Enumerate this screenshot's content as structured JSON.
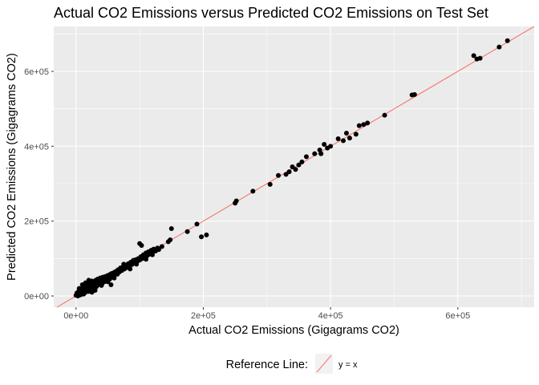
{
  "chart_data": {
    "type": "scatter",
    "title": "Actual CO2 Emissions versus Predicted CO2 Emissions on Test Set",
    "xlabel": "Actual CO2 Emissions (Gigagrams CO2)",
    "ylabel": "Predicted CO2 Emissions (Gigagrams CO2)",
    "xlim": [
      -35000,
      720000
    ],
    "ylim": [
      -30000,
      720000
    ],
    "x_ticks": [
      {
        "value": 0,
        "label": "0e+00"
      },
      {
        "value": 200000,
        "label": "2e+05"
      },
      {
        "value": 400000,
        "label": "4e+05"
      },
      {
        "value": 600000,
        "label": "6e+05"
      }
    ],
    "y_ticks": [
      {
        "value": 0,
        "label": "0e+00"
      },
      {
        "value": 200000,
        "label": "2e+05"
      },
      {
        "value": 400000,
        "label": "4e+05"
      },
      {
        "value": 600000,
        "label": "6e+05"
      }
    ],
    "grid": true,
    "legend_position": "bottom",
    "legend": {
      "title": "Reference Line:",
      "entries": [
        {
          "label": "y = x",
          "color": "#f8766d"
        }
      ]
    },
    "reference_line": {
      "slope": 1,
      "intercept": 0,
      "color": "#f8766d"
    },
    "colors": {
      "panel_background": "#ebebeb",
      "grid_major": "#ffffff",
      "points": "#000000",
      "reference_line": "#f8766d"
    },
    "points": [
      {
        "x": 0,
        "y": 2000
      },
      {
        "x": 1500,
        "y": 8000
      },
      {
        "x": 3000,
        "y": 0
      },
      {
        "x": 4000,
        "y": 12000
      },
      {
        "x": 5000,
        "y": 5000
      },
      {
        "x": 6000,
        "y": 15000
      },
      {
        "x": 7000,
        "y": 3000
      },
      {
        "x": 8000,
        "y": 10000
      },
      {
        "x": 9000,
        "y": 18000
      },
      {
        "x": 10000,
        "y": 8000
      },
      {
        "x": 11000,
        "y": 20000
      },
      {
        "x": 12000,
        "y": 5000
      },
      {
        "x": 13000,
        "y": 15000
      },
      {
        "x": 14000,
        "y": 25000
      },
      {
        "x": 15000,
        "y": 10000
      },
      {
        "x": 16000,
        "y": 22000
      },
      {
        "x": 17000,
        "y": 30000
      },
      {
        "x": 18000,
        "y": 15000
      },
      {
        "x": 19000,
        "y": 25000
      },
      {
        "x": 20000,
        "y": 12000
      },
      {
        "x": 21000,
        "y": 28000
      },
      {
        "x": 22000,
        "y": 35000
      },
      {
        "x": 23000,
        "y": 18000
      },
      {
        "x": 24000,
        "y": 30000
      },
      {
        "x": 25000,
        "y": 40000
      },
      {
        "x": 26000,
        "y": 20000
      },
      {
        "x": 27000,
        "y": 33000
      },
      {
        "x": 28000,
        "y": 25000
      },
      {
        "x": 29000,
        "y": 38000
      },
      {
        "x": 30000,
        "y": 30000
      },
      {
        "x": 31000,
        "y": 42000
      },
      {
        "x": 32000,
        "y": 25000
      },
      {
        "x": 33000,
        "y": 36000
      },
      {
        "x": 34000,
        "y": 45000
      },
      {
        "x": 35000,
        "y": 30000
      },
      {
        "x": 36000,
        "y": 40000
      },
      {
        "x": 37000,
        "y": 35000
      },
      {
        "x": 38000,
        "y": 48000
      },
      {
        "x": 39000,
        "y": 38000
      },
      {
        "x": 40000,
        "y": 42000
      },
      {
        "x": 41000,
        "y": 33000
      },
      {
        "x": 42000,
        "y": 50000
      },
      {
        "x": 43000,
        "y": 40000
      },
      {
        "x": 44000,
        "y": 47000
      },
      {
        "x": 45000,
        "y": 38000
      },
      {
        "x": 46000,
        "y": 52000
      },
      {
        "x": 47000,
        "y": 44000
      },
      {
        "x": 48000,
        "y": 50000
      },
      {
        "x": 49000,
        "y": 42000
      },
      {
        "x": 50000,
        "y": 55000
      },
      {
        "x": 51000,
        "y": 48000
      },
      {
        "x": 52000,
        "y": 52000
      },
      {
        "x": 53000,
        "y": 45000
      },
      {
        "x": 54000,
        "y": 58000
      },
      {
        "x": 55000,
        "y": 50000
      },
      {
        "x": 56000,
        "y": 60000
      },
      {
        "x": 57000,
        "y": 52000
      },
      {
        "x": 58000,
        "y": 56000
      },
      {
        "x": 59000,
        "y": 62000
      },
      {
        "x": 60000,
        "y": 55000
      },
      {
        "x": 62000,
        "y": 65000
      },
      {
        "x": 64000,
        "y": 60000
      },
      {
        "x": 66000,
        "y": 70000
      },
      {
        "x": 68000,
        "y": 64000
      },
      {
        "x": 70000,
        "y": 75000
      },
      {
        "x": 72000,
        "y": 68000
      },
      {
        "x": 74000,
        "y": 78000
      },
      {
        "x": 76000,
        "y": 72000
      },
      {
        "x": 78000,
        "y": 82000
      },
      {
        "x": 80000,
        "y": 76000
      },
      {
        "x": 82000,
        "y": 86000
      },
      {
        "x": 84000,
        "y": 80000
      },
      {
        "x": 86000,
        "y": 90000
      },
      {
        "x": 88000,
        "y": 84000
      },
      {
        "x": 90000,
        "y": 95000
      },
      {
        "x": 92000,
        "y": 88000
      },
      {
        "x": 94000,
        "y": 97000
      },
      {
        "x": 96000,
        "y": 92000
      },
      {
        "x": 98000,
        "y": 100000
      },
      {
        "x": 100000,
        "y": 96000
      },
      {
        "x": 102000,
        "y": 105000
      },
      {
        "x": 104000,
        "y": 100000
      },
      {
        "x": 106000,
        "y": 110000
      },
      {
        "x": 108000,
        "y": 104000
      },
      {
        "x": 110000,
        "y": 115000
      },
      {
        "x": 112000,
        "y": 108000
      },
      {
        "x": 114000,
        "y": 118000
      },
      {
        "x": 116000,
        "y": 112000
      },
      {
        "x": 118000,
        "y": 122000
      },
      {
        "x": 120000,
        "y": 116000
      },
      {
        "x": 122000,
        "y": 125000
      },
      {
        "x": 125000,
        "y": 120000
      },
      {
        "x": 128000,
        "y": 128000
      },
      {
        "x": 130000,
        "y": 124000
      },
      {
        "x": 135000,
        "y": 132000
      },
      {
        "x": 5000,
        "y": 20000
      },
      {
        "x": 10000,
        "y": 30000
      },
      {
        "x": 15000,
        "y": 35000
      },
      {
        "x": 20000,
        "y": 42000
      },
      {
        "x": 25000,
        "y": 10000
      },
      {
        "x": 30000,
        "y": 15000
      },
      {
        "x": 40000,
        "y": 28000
      },
      {
        "x": 50000,
        "y": 38000
      },
      {
        "x": 55000,
        "y": 30000
      },
      {
        "x": 60000,
        "y": 48000
      },
      {
        "x": 65000,
        "y": 58000
      },
      {
        "x": 75000,
        "y": 85000
      },
      {
        "x": 85000,
        "y": 72000
      },
      {
        "x": 95000,
        "y": 85000
      },
      {
        "x": 100000,
        "y": 140000
      },
      {
        "x": 103000,
        "y": 135000
      },
      {
        "x": 110000,
        "y": 98000
      },
      {
        "x": 120000,
        "y": 110000
      },
      {
        "x": 145000,
        "y": 145000
      },
      {
        "x": 148000,
        "y": 150000
      },
      {
        "x": 150000,
        "y": 180000
      },
      {
        "x": 175000,
        "y": 172000
      },
      {
        "x": 190000,
        "y": 192000
      },
      {
        "x": 197000,
        "y": 158000
      },
      {
        "x": 205000,
        "y": 163000
      },
      {
        "x": 250000,
        "y": 248000
      },
      {
        "x": 252000,
        "y": 254000
      },
      {
        "x": 278000,
        "y": 280000
      },
      {
        "x": 305000,
        "y": 298000
      },
      {
        "x": 318000,
        "y": 322000
      },
      {
        "x": 330000,
        "y": 325000
      },
      {
        "x": 335000,
        "y": 332000
      },
      {
        "x": 340000,
        "y": 345000
      },
      {
        "x": 345000,
        "y": 338000
      },
      {
        "x": 350000,
        "y": 350000
      },
      {
        "x": 355000,
        "y": 358000
      },
      {
        "x": 362000,
        "y": 372000
      },
      {
        "x": 375000,
        "y": 380000
      },
      {
        "x": 383000,
        "y": 390000
      },
      {
        "x": 385000,
        "y": 380000
      },
      {
        "x": 390000,
        "y": 405000
      },
      {
        "x": 395000,
        "y": 395000
      },
      {
        "x": 400000,
        "y": 400000
      },
      {
        "x": 412000,
        "y": 420000
      },
      {
        "x": 420000,
        "y": 415000
      },
      {
        "x": 425000,
        "y": 435000
      },
      {
        "x": 430000,
        "y": 422000
      },
      {
        "x": 440000,
        "y": 432000
      },
      {
        "x": 445000,
        "y": 455000
      },
      {
        "x": 452000,
        "y": 458000
      },
      {
        "x": 458000,
        "y": 462000
      },
      {
        "x": 485000,
        "y": 483000
      },
      {
        "x": 528000,
        "y": 537000
      },
      {
        "x": 532000,
        "y": 538000
      },
      {
        "x": 625000,
        "y": 642000
      },
      {
        "x": 630000,
        "y": 633000
      },
      {
        "x": 635000,
        "y": 635000
      },
      {
        "x": 665000,
        "y": 665000
      },
      {
        "x": 678000,
        "y": 682000
      }
    ]
  }
}
